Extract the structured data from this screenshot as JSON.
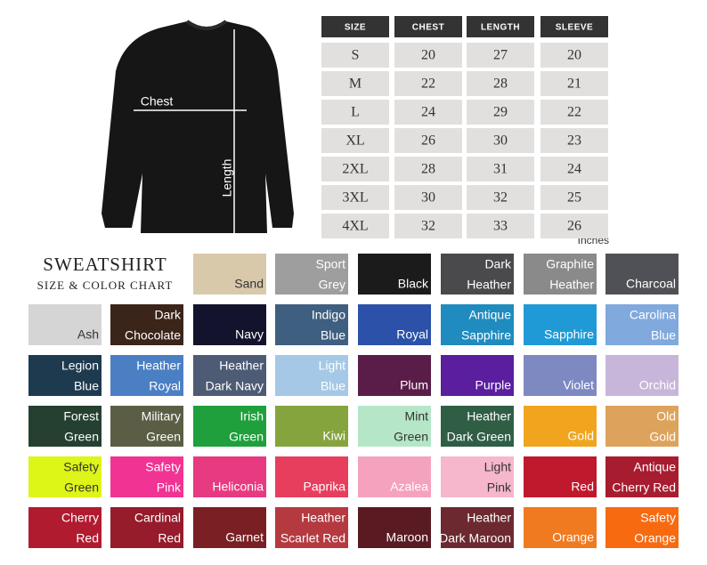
{
  "size_table": {
    "header": [
      "SIZE",
      "CHEST",
      "LENGTH",
      "SLEEVE"
    ],
    "rows": [
      [
        "S",
        20,
        27,
        20
      ],
      [
        "M",
        22,
        28,
        21
      ],
      [
        "L",
        24,
        29,
        22
      ],
      [
        "XL",
        26,
        30,
        23
      ],
      [
        "2XL",
        28,
        31,
        24
      ],
      [
        "3XL",
        30,
        32,
        25
      ],
      [
        "4XL",
        32,
        33,
        26
      ]
    ],
    "unit_note": "Inches"
  },
  "diagram": {
    "chest_label": "Chest",
    "length_label": "Length"
  },
  "heading": {
    "title": "SWEATSHIRT",
    "subtitle": "SIZE & COLOR CHART"
  },
  "swatches": [
    {
      "name": [
        "Sand"
      ],
      "color": "#d9c9ab"
    },
    {
      "name": [
        "Sport",
        "Grey"
      ],
      "color": "#9e9e9e"
    },
    {
      "name": [
        "Black"
      ],
      "color": "#1b1b1c"
    },
    {
      "name": [
        "Dark",
        "Heather"
      ],
      "color": "#4a4a4c"
    },
    {
      "name": [
        "Graphite",
        "Heather"
      ],
      "color": "#8a8a8a"
    },
    {
      "name": [
        "Charcoal"
      ],
      "color": "#4f5156"
    },
    {
      "name": [
        "Ash"
      ],
      "color": "#d5d5d5"
    },
    {
      "name": [
        "Dark",
        "Chocolate"
      ],
      "color": "#3b2419"
    },
    {
      "name": [
        "Navy"
      ],
      "color": "#13132e"
    },
    {
      "name": [
        "Indigo",
        "Blue"
      ],
      "color": "#3f5f80"
    },
    {
      "name": [
        "Royal"
      ],
      "color": "#2b52a8"
    },
    {
      "name": [
        "Antique",
        "Sapphire"
      ],
      "color": "#1f8bbf"
    },
    {
      "name": [
        "Sapphire"
      ],
      "color": "#1f9ad6"
    },
    {
      "name": [
        "Carolina",
        "Blue"
      ],
      "color": "#80a9de"
    },
    {
      "name": [
        "Legion",
        "Blue"
      ],
      "color": "#1e3a4f"
    },
    {
      "name": [
        "Heather",
        "Royal"
      ],
      "color": "#4b7fc4"
    },
    {
      "name": [
        "Heather",
        "Dark Navy"
      ],
      "color": "#4d5b75"
    },
    {
      "name": [
        "Light",
        "Blue"
      ],
      "color": "#a5c8e6"
    },
    {
      "name": [
        "Plum"
      ],
      "color": "#5a1c48"
    },
    {
      "name": [
        "Purple"
      ],
      "color": "#5a1e9e"
    },
    {
      "name": [
        "Violet"
      ],
      "color": "#7e89c2"
    },
    {
      "name": [
        "Orchid"
      ],
      "color": "#c8b6da"
    },
    {
      "name": [
        "Forest",
        "Green"
      ],
      "color": "#254030"
    },
    {
      "name": [
        "Military",
        "Green"
      ],
      "color": "#5b5e45"
    },
    {
      "name": [
        "Irish",
        "Green"
      ],
      "color": "#1fa03c"
    },
    {
      "name": [
        "Kiwi"
      ],
      "color": "#85a43e"
    },
    {
      "name": [
        "Mint",
        "Green"
      ],
      "color": "#b6e6c8"
    },
    {
      "name": [
        "Heather",
        "Dark Green"
      ],
      "color": "#2f5e45"
    },
    {
      "name": [
        "Gold"
      ],
      "color": "#f1a51f"
    },
    {
      "name": [
        "Old",
        "Gold"
      ],
      "color": "#dda35c"
    },
    {
      "name": [
        "Safety",
        "Green"
      ],
      "color": "#ddf517"
    },
    {
      "name": [
        "Safety",
        "Pink"
      ],
      "color": "#f13393"
    },
    {
      "name": [
        "Heliconia"
      ],
      "color": "#e83a80"
    },
    {
      "name": [
        "Paprika"
      ],
      "color": "#e83e5e"
    },
    {
      "name": [
        "Azalea"
      ],
      "color": "#f5a2bf"
    },
    {
      "name": [
        "Light",
        "Pink"
      ],
      "color": "#f6b6cc"
    },
    {
      "name": [
        "Red"
      ],
      "color": "#c0182d"
    },
    {
      "name": [
        "Antique",
        "Cherry Red"
      ],
      "color": "#a81c30"
    },
    {
      "name": [
        "Cherry",
        "Red"
      ],
      "color": "#b11b30"
    },
    {
      "name": [
        "Cardinal",
        "Red"
      ],
      "color": "#961b2b"
    },
    {
      "name": [
        "Garnet"
      ],
      "color": "#7a1f24"
    },
    {
      "name": [
        "Heather",
        "Scarlet Red"
      ],
      "color": "#b43a40"
    },
    {
      "name": [
        "Maroon"
      ],
      "color": "#5a1a22"
    },
    {
      "name": [
        "Heather",
        "Dark Maroon"
      ],
      "color": "#6c2a30"
    },
    {
      "name": [
        "Orange"
      ],
      "color": "#f07a1f"
    },
    {
      "name": [
        "Safety",
        "Orange"
      ],
      "color": "#f86a10"
    }
  ]
}
